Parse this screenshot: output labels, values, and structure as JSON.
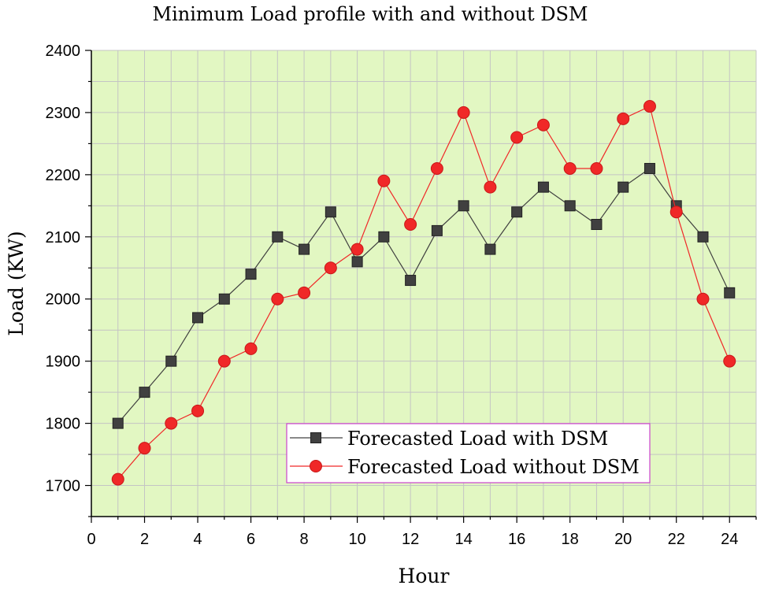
{
  "chart_data": {
    "type": "line",
    "title": "Minimum Load profile with and without DSM",
    "xlabel": "Hour",
    "ylabel": "Load (KW)",
    "xlim": [
      0,
      25
    ],
    "ylim": [
      1650,
      2400
    ],
    "xticks": [
      0,
      2,
      4,
      6,
      8,
      10,
      12,
      14,
      16,
      18,
      20,
      22,
      24
    ],
    "yticks": [
      1700,
      1800,
      1900,
      2000,
      2100,
      2200,
      2300,
      2400
    ],
    "grid": true,
    "legend_position": "bottom-center",
    "x": [
      1,
      2,
      3,
      4,
      5,
      6,
      7,
      8,
      9,
      10,
      11,
      12,
      13,
      14,
      15,
      16,
      17,
      18,
      19,
      20,
      21,
      22,
      23,
      24
    ],
    "series": [
      {
        "name": "Forecasted Load with DSM",
        "color": "#404040",
        "marker": "square",
        "values": [
          1800,
          1850,
          1900,
          1970,
          2000,
          2040,
          2100,
          2080,
          2140,
          2060,
          2100,
          2030,
          2110,
          2150,
          2080,
          2140,
          2180,
          2150,
          2120,
          2180,
          2210,
          2150,
          2100,
          2010
        ]
      },
      {
        "name": "Forecasted Load without DSM",
        "color": "#f02828",
        "marker": "circle",
        "values": [
          1710,
          1760,
          1800,
          1820,
          1900,
          1920,
          2000,
          2010,
          2050,
          2080,
          2190,
          2120,
          2210,
          2300,
          2180,
          2260,
          2280,
          2210,
          2210,
          2290,
          2310,
          2140,
          2000,
          1900
        ]
      }
    ]
  },
  "colors": {
    "plot_background": "#e2f7c2",
    "grid": "#c4c4c4",
    "legend_border": "#cc44cc"
  }
}
